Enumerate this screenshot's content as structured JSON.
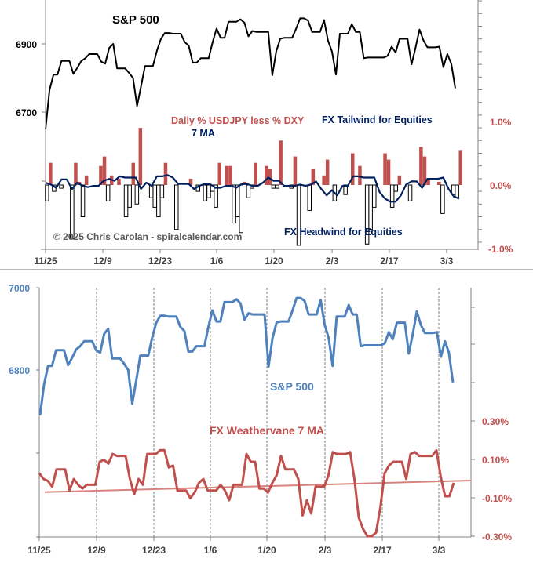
{
  "chart_data": [
    {
      "type": "line+bar",
      "title": "S&P 500",
      "annotations": {
        "bar_series_label": "Daily % USDJPY less % DXY",
        "ma_label": "7 MA",
        "tailwind_label": "FX Tailwind for Equities",
        "headwind_label": "FX Headwind for Equities",
        "copyright": "© 2025 Chris Carolan - spiralcalendar.com"
      },
      "x_tick_labels": [
        "11/25",
        "12/9",
        "12/23",
        "1/6",
        "1/20",
        "2/3",
        "2/17",
        "3/3"
      ],
      "left_axis": {
        "ticks": [
          "6900",
          "6700"
        ],
        "values": [
          6900,
          6700
        ]
      },
      "right_axis": {
        "ticks": [
          "1.0%",
          "0.0%",
          "-1.0%"
        ],
        "values": [
          1.0,
          0.0,
          -1.0
        ]
      },
      "colors": {
        "spx": "#000000",
        "pos_bar": "#c0504d",
        "neg_bar": "#ffffff",
        "ma": "#002060",
        "axis_text_right": "#c0504d"
      },
      "series": [
        {
          "name": "S&P 500",
          "values": [
            6650,
            6765,
            6810,
            6810,
            6850,
            6850,
            6850,
            6812,
            6830,
            6850,
            6858,
            6870,
            6870,
            6870,
            6848,
            6842,
            6888,
            6900,
            6828,
            6828,
            6828,
            6815,
            6800,
            6718,
            6775,
            6835,
            6835,
            6835,
            6880,
            6915,
            6932,
            6932,
            6930,
            6930,
            6930,
            6905,
            6895,
            6845,
            6845,
            6858,
            6858,
            6858,
            6905,
            6945,
            6918,
            6918,
            6965,
            6965,
            6965,
            6972,
            6962,
            6922,
            6938,
            6935,
            6935,
            6935,
            6935,
            6808,
            6878,
            6915,
            6918,
            6918,
            6918,
            6945,
            6975,
            6975,
            6968,
            6935,
            6935,
            6935,
            6970,
            6910,
            6878,
            6810,
            6930,
            6930,
            6930,
            6958,
            6935,
            6935,
            6858,
            6860,
            6860,
            6860,
            6860,
            6860,
            6865,
            6892,
            6875,
            6915,
            6915,
            6915,
            6840,
            6888,
            6942,
            6910,
            6890,
            6890,
            6890,
            6892,
            6832,
            6870,
            6842,
            6770
          ]
        },
        {
          "name": "Daily % USDJPY less % DXY",
          "values": [
            -0.25,
            0.35,
            -0.1,
            0.0,
            -0.05,
            0.0,
            0.0,
            -0.85,
            0.35,
            0.05,
            -0.5,
            0.15,
            0.0,
            0.0,
            0.0,
            0.3,
            0.45,
            -0.25,
            0.15,
            0.0,
            0.1,
            0.0,
            -0.5,
            -0.35,
            0.35,
            -0.3,
            0.9,
            0.0,
            0.0,
            -0.2,
            -0.35,
            -0.5,
            -0.2,
            0.35,
            0.0,
            0.0,
            -0.7,
            0.0,
            0.0,
            0.0,
            0.1,
            0.0,
            -0.1,
            0.0,
            -0.25,
            -0.2,
            -0.1,
            -0.35,
            0.35,
            0.0,
            0.3,
            0.3,
            -0.6,
            -0.5,
            -0.75,
            0.05,
            -0.2,
            -0.05,
            0.35,
            0.0,
            0.0,
            0.3,
            0.25,
            -0.05,
            -0.05,
            0.7,
            0.0,
            0.0,
            -0.05,
            0.45,
            -0.95,
            0.0,
            0.0,
            -0.4,
            0.25,
            0.0,
            0.0,
            0.15,
            0.4,
            0.0,
            -0.25,
            0.0,
            0.0,
            -0.15,
            0.0,
            0.5,
            0.0,
            0.3,
            0.0,
            -0.93,
            -0.7,
            -0.35,
            0.0,
            0.0,
            0.5,
            0.4,
            -0.35,
            -0.1,
            0.15,
            0.0,
            0.0,
            -0.25,
            0.0,
            0.0,
            0.6,
            0.45,
            0.1,
            0.0,
            0.0,
            0.05,
            -0.45,
            0.0,
            0.0,
            -0.15,
            -0.2,
            0.55
          ]
        },
        {
          "name": "7 MA",
          "values": [
            0.0,
            -0.03,
            -0.08,
            0.05,
            0.05,
            -0.1,
            0.0,
            -0.05,
            -0.07,
            -0.05,
            -0.05,
            0.03,
            0.06,
            0.03,
            0.1,
            0.08,
            0.08,
            0.08,
            -0.1,
            0.0,
            -0.05,
            0.1,
            0.1,
            0.12,
            0.08,
            -0.02,
            -0.02,
            -0.02,
            -0.1,
            -0.05,
            -0.02,
            -0.02,
            -0.08,
            -0.08,
            -0.05,
            -0.05,
            -0.08,
            -0.02,
            -0.02,
            -0.05,
            -0.05,
            0.0,
            0.08,
            0.03,
            0.03,
            -0.05,
            -0.05,
            -0.05,
            -0.03,
            -0.05,
            -0.03,
            0.02,
            -0.1,
            -0.2,
            -0.12,
            -0.2,
            -0.05,
            -0.05,
            0.1,
            0.1,
            0.08,
            0.08,
            0.08,
            -0.15,
            -0.25,
            -0.3,
            -0.3,
            -0.2,
            -0.03,
            0.02,
            0.02,
            -0.08,
            0.06,
            0.06,
            0.06,
            0.08,
            -0.1,
            -0.22,
            -0.25
          ]
        }
      ]
    },
    {
      "type": "line",
      "annotations": {
        "spx_label": "S&P 500",
        "fx_label": "FX Weathervane 7 MA"
      },
      "x_tick_labels": [
        "11/25",
        "12/9",
        "12/23",
        "1/6",
        "1/20",
        "2/3",
        "2/17",
        "3/3"
      ],
      "left_axis": {
        "ticks": [
          "7000",
          "6800"
        ],
        "values": [
          7000,
          6800
        ]
      },
      "right_axis": {
        "ticks": [
          "0.30%",
          "0.10%",
          "-0.10%",
          "-0.30%"
        ],
        "values": [
          0.3,
          0.1,
          -0.1,
          -0.3
        ]
      },
      "colors": {
        "spx": "#4f81bd",
        "fx": "#c0504d",
        "axis_text_left": "#4f81bd",
        "axis_text_right": "#c0504d"
      },
      "series": [
        {
          "name": "S&P 500",
          "values": [
            6690,
            6765,
            6810,
            6810,
            6848,
            6848,
            6848,
            6812,
            6830,
            6850,
            6858,
            6870,
            6870,
            6870,
            6848,
            6842,
            6888,
            6900,
            6828,
            6828,
            6828,
            6815,
            6800,
            6718,
            6775,
            6835,
            6835,
            6835,
            6880,
            6915,
            6932,
            6932,
            6930,
            6930,
            6930,
            6905,
            6895,
            6845,
            6845,
            6858,
            6858,
            6858,
            6905,
            6945,
            6918,
            6918,
            6965,
            6965,
            6965,
            6972,
            6962,
            6922,
            6938,
            6935,
            6935,
            6935,
            6935,
            6808,
            6878,
            6915,
            6918,
            6918,
            6918,
            6945,
            6975,
            6975,
            6968,
            6935,
            6935,
            6935,
            6970,
            6910,
            6878,
            6810,
            6930,
            6930,
            6930,
            6958,
            6935,
            6935,
            6858,
            6860,
            6860,
            6860,
            6860,
            6860,
            6865,
            6892,
            6875,
            6915,
            6915,
            6915,
            6840,
            6888,
            6942,
            6910,
            6890,
            6890,
            6890,
            6892,
            6832,
            6870,
            6842,
            6770
          ]
        },
        {
          "name": "FX Weathervane 7 MA",
          "values": [
            0.03,
            0.0,
            -0.01,
            -0.04,
            0.05,
            0.05,
            0.05,
            -0.06,
            0.0,
            -0.03,
            -0.05,
            -0.03,
            -0.03,
            -0.03,
            0.09,
            0.1,
            0.08,
            0.13,
            0.12,
            0.12,
            0.12,
            0.0,
            -0.08,
            0.0,
            -0.03,
            0.13,
            0.13,
            0.13,
            0.15,
            0.15,
            0.06,
            0.07,
            -0.06,
            -0.06,
            -0.06,
            -0.1,
            -0.07,
            -0.02,
            0.0,
            -0.06,
            -0.06,
            -0.06,
            -0.03,
            -0.06,
            -0.11,
            -0.03,
            -0.03,
            -0.03,
            0.13,
            0.09,
            0.09,
            -0.05,
            -0.05,
            -0.07,
            -0.02,
            0.02,
            0.12,
            0.05,
            0.05,
            0.05,
            0.0,
            -0.19,
            -0.11,
            -0.18,
            -0.04,
            -0.04,
            -0.04,
            0.02,
            0.14,
            0.13,
            0.13,
            0.13,
            0.14,
            0.0,
            -0.2,
            -0.26,
            -0.32,
            -0.32,
            -0.28,
            -0.15,
            0.03,
            0.07,
            0.09,
            0.09,
            0.09,
            0.0,
            0.13,
            0.14,
            0.12,
            0.12,
            0.12,
            0.12,
            0.15,
            0.01,
            -0.09,
            -0.09,
            -0.02
          ]
        },
        {
          "name": "FX Weathervane trendline",
          "values": [
            -0.04,
            0.0
          ]
        }
      ]
    }
  ]
}
